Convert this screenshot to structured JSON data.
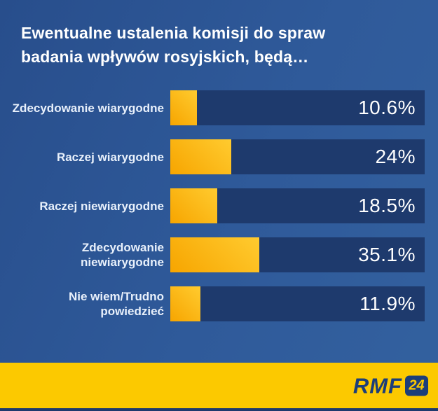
{
  "title": "Ewentualne ustalenia komisji do spraw badania wpływów rosyjskich, będą…",
  "chart_data": {
    "type": "bar",
    "orientation": "horizontal",
    "categories": [
      "Zdecydowanie wiarygodne",
      "Raczej wiarygodne",
      "Raczej niewiarygodne",
      "Zdecydowanie niewiarygodne",
      "Nie wiem/Trudno powiedzieć"
    ],
    "category_display_lines": [
      [
        "Zdecydowanie wiarygodne"
      ],
      [
        "Raczej wiarygodne"
      ],
      [
        "Raczej niewiarygodne"
      ],
      [
        "Zdecydowanie",
        "niewiarygodne"
      ],
      [
        "Nie wiem/Trudno",
        "powiedzieć"
      ]
    ],
    "values": [
      10.6,
      24,
      18.5,
      35.1,
      11.9
    ],
    "value_labels": [
      "10.6%",
      "24%",
      "18.5%",
      "35.1%",
      "11.9%"
    ],
    "xlim": [
      0,
      100
    ],
    "grid": false,
    "legend": null,
    "value_label_position": "inside-right",
    "title": "Ewentualne ustalenia komisji do spraw badania wpływów rosyjskich, będą…"
  },
  "colors": {
    "background_start": "#284e8c",
    "background_end": "#33619f",
    "bar_track": "#1e3a6d",
    "bar_fill_light": "#ffcb2f",
    "bar_fill_dark": "#f7a500",
    "title_text": "#ffffff",
    "label_text": "#e8f0fb",
    "value_text": "#ffffff",
    "footer_strip": "#fcc900",
    "brand_navy": "#1c3e79"
  },
  "footer": {
    "brand": "RMF",
    "brand_badge": "24"
  }
}
